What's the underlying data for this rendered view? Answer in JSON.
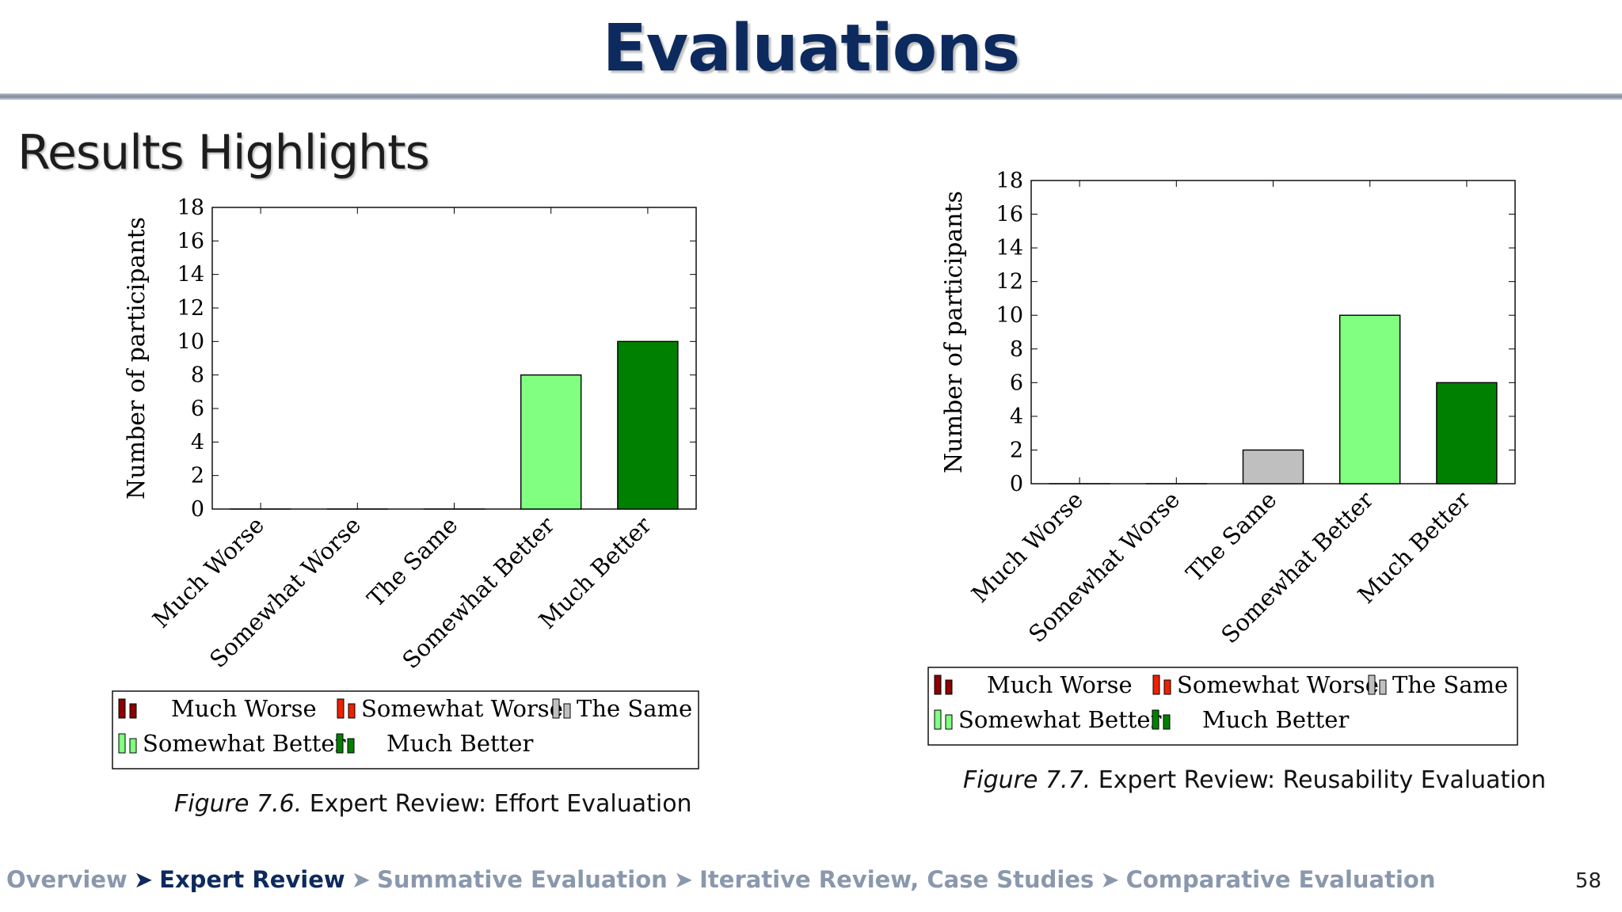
{
  "title": "Evaluations",
  "section": "Results Highlights",
  "footer": {
    "crumbs": [
      "Overview",
      "Expert Review",
      "Summative Evaluation",
      "Iterative Review, Case Studies",
      "Comparative Evaluation"
    ],
    "active_index": 1,
    "separator": "➤",
    "page_number": "58"
  },
  "colors": {
    "Much Worse": "#8b0000",
    "Somewhat Worse": "#ee2200",
    "The Same": "#bfbfbf",
    "Somewhat Better": "#80ff80",
    "Much Better": "#008000"
  },
  "chart_data": [
    {
      "type": "bar",
      "categories": [
        "Much Worse",
        "Somewhat Worse",
        "The Same",
        "Somewhat Better",
        "Much Better"
      ],
      "values": [
        0,
        0,
        0,
        8,
        10
      ],
      "ylabel": "Number of participants",
      "xlabel": "",
      "ylim": [
        0,
        18
      ],
      "yticks": [
        0,
        2,
        4,
        6,
        8,
        10,
        12,
        14,
        16,
        18
      ],
      "legend": [
        "Much Worse",
        "Somewhat Worse",
        "The Same",
        "Somewhat Better",
        "Much Better"
      ],
      "legend_position": "bottom",
      "caption_prefix": "Figure 7.6.",
      "caption": "Expert Review: Effort Evaluation"
    },
    {
      "type": "bar",
      "categories": [
        "Much Worse",
        "Somewhat Worse",
        "The Same",
        "Somewhat Better",
        "Much Better"
      ],
      "values": [
        0,
        0,
        2,
        10,
        6
      ],
      "ylabel": "Number of participants",
      "xlabel": "",
      "ylim": [
        0,
        18
      ],
      "yticks": [
        0,
        2,
        4,
        6,
        8,
        10,
        12,
        14,
        16,
        18
      ],
      "legend": [
        "Much Worse",
        "Somewhat Worse",
        "The Same",
        "Somewhat Better",
        "Much Better"
      ],
      "legend_position": "bottom",
      "caption_prefix": "Figure 7.7.",
      "caption": "Expert Review: Reusability Evaluation"
    }
  ]
}
